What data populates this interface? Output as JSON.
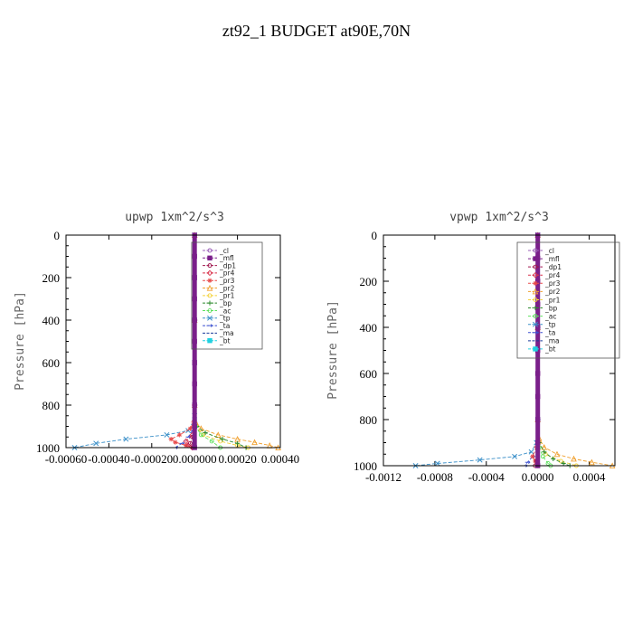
{
  "page": {
    "title": "zt92_1  BUDGET at90E,70N"
  },
  "legend_items": [
    {
      "label": "_cl",
      "color": "#9a5fb8"
    },
    {
      "label": "_mfl",
      "color": "#7a1f8a"
    },
    {
      "label": "_dp1",
      "color": "#a0154c"
    },
    {
      "label": "_pr4",
      "color": "#d9304a"
    },
    {
      "label": "_pr3",
      "color": "#e84a4a"
    },
    {
      "label": "_pr2",
      "color": "#f0a030"
    },
    {
      "label": "_pr1",
      "color": "#f3d23a"
    },
    {
      "label": "_bp",
      "color": "#2e8b2e"
    },
    {
      "label": "_ac",
      "color": "#5de05d"
    },
    {
      "label": "_tp",
      "color": "#3a8fc8"
    },
    {
      "label": "_ta",
      "color": "#3a4fd0"
    },
    {
      "label": "_ma",
      "color": "#1a3a9a"
    },
    {
      "label": "_bt",
      "color": "#20d0e0"
    }
  ],
  "chart_data": [
    {
      "type": "line",
      "title": "upwp  1xm^2/s^3",
      "ylabel": "Pressure [hPa]",
      "xlabel": "",
      "xlim": [
        -0.0006,
        0.0004
      ],
      "ylim": [
        1000,
        0
      ],
      "x_ticks": [
        -0.0006,
        -0.0004,
        -0.0002,
        0.0,
        0.0002,
        0.0004
      ],
      "x_tick_labels": [
        "-0.00060",
        "-0.00040",
        "-0.00020",
        "0.000000",
        "0.00020",
        "0.00040"
      ],
      "y_ticks": [
        0,
        200,
        400,
        600,
        800,
        1000
      ],
      "y_tick_labels": [
        "0",
        "200",
        "400",
        "600",
        "800",
        "1000"
      ],
      "legend_position": "top-right",
      "series": [
        {
          "name": "_tp",
          "color": "#3a8fc8",
          "marker": "x",
          "y": [
            0,
            200,
            400,
            600,
            800,
            850,
            880,
            900,
            920,
            940,
            960,
            980,
            1000
          ],
          "x": [
            0,
            0,
            0,
            0,
            0,
            0,
            0,
            -5e-06,
            -3e-05,
            -0.00013,
            -0.00032,
            -0.00046,
            -0.00056
          ]
        },
        {
          "name": "_ta",
          "color": "#3a4fd0",
          "marker": "arrow",
          "y": [
            0,
            400,
            800,
            880,
            920,
            950,
            980,
            1000
          ],
          "x": [
            0,
            0,
            0,
            0,
            -1e-05,
            -3e-05,
            -6e-05,
            -9e-05
          ]
        },
        {
          "name": "_pr3",
          "color": "#e84a4a",
          "marker": "star",
          "y": [
            0,
            400,
            800,
            880,
            910,
            940,
            960,
            975,
            990,
            1000
          ],
          "x": [
            0,
            0,
            0,
            -5e-06,
            -2e-05,
            -7e-05,
            -0.00011,
            -9e-05,
            -4e-05,
            -1e-05
          ]
        },
        {
          "name": "_pr4",
          "color": "#d9304a",
          "marker": "diamond",
          "y": [
            0,
            400,
            800,
            900,
            940,
            970,
            990,
            1000
          ],
          "x": [
            0,
            0,
            0,
            0,
            -1e-05,
            -4e-05,
            -3e-05,
            -1e-05
          ]
        },
        {
          "name": "_pr2",
          "color": "#f0a030",
          "marker": "triangle",
          "y": [
            0,
            400,
            800,
            880,
            910,
            940,
            960,
            975,
            990,
            1000
          ],
          "x": [
            0,
            0,
            0,
            5e-06,
            3e-05,
            0.00011,
            0.0002,
            0.00028,
            0.00035,
            0.00039
          ]
        },
        {
          "name": "_pr1",
          "color": "#f3d23a",
          "marker": "circle",
          "y": [
            0,
            400,
            800,
            900,
            940,
            970,
            990,
            1000
          ],
          "x": [
            0,
            0,
            0,
            5e-06,
            4e-05,
            0.00012,
            0.0002,
            0.00025
          ]
        },
        {
          "name": "_bp",
          "color": "#2e8b2e",
          "marker": "plus",
          "y": [
            0,
            400,
            800,
            900,
            930,
            960,
            980,
            1000
          ],
          "x": [
            0,
            0,
            0,
            1e-05,
            5e-05,
            0.00013,
            0.0002,
            0.00024
          ]
        },
        {
          "name": "_ac",
          "color": "#5de05d",
          "marker": "circle",
          "y": [
            0,
            400,
            800,
            900,
            940,
            970,
            1000
          ],
          "x": [
            0,
            0,
            0,
            5e-06,
            3e-05,
            8e-05,
            0.00012
          ]
        },
        {
          "name": "_dp1",
          "color": "#a0154c",
          "marker": "circle",
          "y": [
            0,
            400,
            800,
            900,
            950,
            980,
            1000
          ],
          "x": [
            0,
            0,
            0,
            0,
            -1e-05,
            -2e-05,
            -1e-05
          ]
        },
        {
          "name": "_mfl",
          "color": "#7a1f8a",
          "marker": "square",
          "y": [
            0,
            100,
            200,
            300,
            400,
            500,
            600,
            700,
            800,
            900,
            1000
          ],
          "x": [
            0,
            0,
            0,
            0,
            0,
            0,
            0,
            0,
            0,
            0,
            0
          ]
        }
      ]
    },
    {
      "type": "line",
      "title": "vpwp  1xm^2/s^3",
      "ylabel": "Pressure [hPa]",
      "xlabel": "",
      "xlim": [
        -0.0012,
        0.0006
      ],
      "ylim": [
        1000,
        0
      ],
      "x_ticks": [
        -0.0012,
        -0.0008,
        -0.0004,
        0.0,
        0.0004
      ],
      "x_tick_labels": [
        "-0.0012",
        "-0.0008",
        "-0.0004",
        "0.0000",
        "0.0004"
      ],
      "y_ticks": [
        0,
        200,
        400,
        600,
        800,
        1000
      ],
      "y_tick_labels": [
        "0",
        "200",
        "400",
        "600",
        "800",
        "1000"
      ],
      "legend_position": "top-right",
      "series": [
        {
          "name": "_tp",
          "color": "#3a8fc8",
          "marker": "x",
          "y": [
            0,
            400,
            800,
            900,
            940,
            960,
            975,
            990,
            1000
          ],
          "x": [
            0,
            0,
            0,
            -1e-05,
            -5e-05,
            -0.00018,
            -0.00045,
            -0.00078,
            -0.00095
          ]
        },
        {
          "name": "_ta",
          "color": "#3a4fd0",
          "marker": "arrow",
          "y": [
            0,
            400,
            800,
            920,
            960,
            985,
            1000
          ],
          "x": [
            0,
            0,
            0,
            -1e-05,
            -4e-05,
            -8e-05,
            -0.0001
          ]
        },
        {
          "name": "_pr3",
          "color": "#e84a4a",
          "marker": "star",
          "y": [
            0,
            400,
            800,
            920,
            960,
            980,
            1000
          ],
          "x": [
            0,
            0,
            0,
            -1e-05,
            -4e-05,
            -2e-05,
            0
          ]
        },
        {
          "name": "_pr2",
          "color": "#f0a030",
          "marker": "triangle",
          "y": [
            0,
            400,
            800,
            880,
            920,
            950,
            970,
            985,
            1000
          ],
          "x": [
            0,
            0,
            0,
            1e-05,
            5e-05,
            0.00015,
            0.00028,
            0.00042,
            0.00058
          ]
        },
        {
          "name": "_pr1",
          "color": "#f3d23a",
          "marker": "circle",
          "y": [
            0,
            400,
            800,
            900,
            950,
            980,
            1000
          ],
          "x": [
            0,
            0,
            0,
            1e-05,
            6e-05,
            0.00018,
            0.0003
          ]
        },
        {
          "name": "_bp",
          "color": "#2e8b2e",
          "marker": "plus",
          "y": [
            0,
            400,
            800,
            900,
            940,
            970,
            990,
            1000
          ],
          "x": [
            0,
            0,
            0,
            1e-05,
            5e-05,
            0.00012,
            0.0002,
            0.00025
          ]
        },
        {
          "name": "_ac",
          "color": "#5de05d",
          "marker": "circle",
          "y": [
            0,
            400,
            800,
            920,
            960,
            990,
            1000
          ],
          "x": [
            0,
            0,
            0,
            1e-05,
            4e-05,
            8e-05,
            0.0001
          ]
        },
        {
          "name": "_dp1",
          "color": "#a0154c",
          "marker": "circle",
          "y": [
            0,
            400,
            800,
            940,
            980,
            1000
          ],
          "x": [
            0,
            0,
            0,
            0,
            -1e-05,
            -2e-05
          ]
        },
        {
          "name": "_mfl",
          "color": "#7a1f8a",
          "marker": "square",
          "y": [
            0,
            100,
            200,
            300,
            400,
            500,
            600,
            700,
            800,
            900,
            1000
          ],
          "x": [
            0,
            0,
            0,
            0,
            0,
            0,
            0,
            0,
            0,
            0,
            0
          ]
        }
      ]
    }
  ]
}
